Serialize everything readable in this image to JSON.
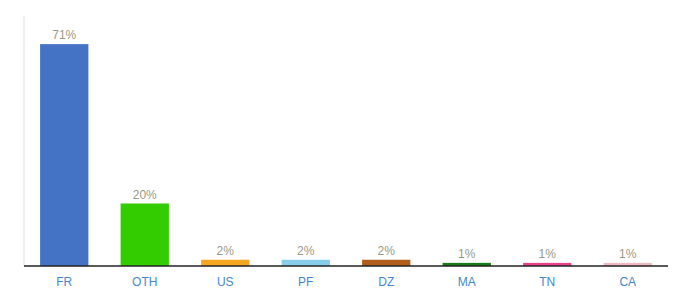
{
  "chart_data": {
    "type": "bar",
    "categories": [
      "FR",
      "OTH",
      "US",
      "PF",
      "DZ",
      "MA",
      "TN",
      "CA"
    ],
    "values": [
      71,
      20,
      2,
      2,
      2,
      1,
      1,
      1
    ],
    "value_labels": [
      "71%",
      "20%",
      "2%",
      "2%",
      "2%",
      "1%",
      "1%",
      "1%"
    ],
    "colors": [
      "#4472c4",
      "#33cc00",
      "#f5a623",
      "#87ceeb",
      "#b05c1a",
      "#1a7a1a",
      "#e8408a",
      "#f0b8c0"
    ],
    "ylim": [
      0,
      80
    ],
    "data_labels": true,
    "tick_labels": "x",
    "grid": false
  }
}
